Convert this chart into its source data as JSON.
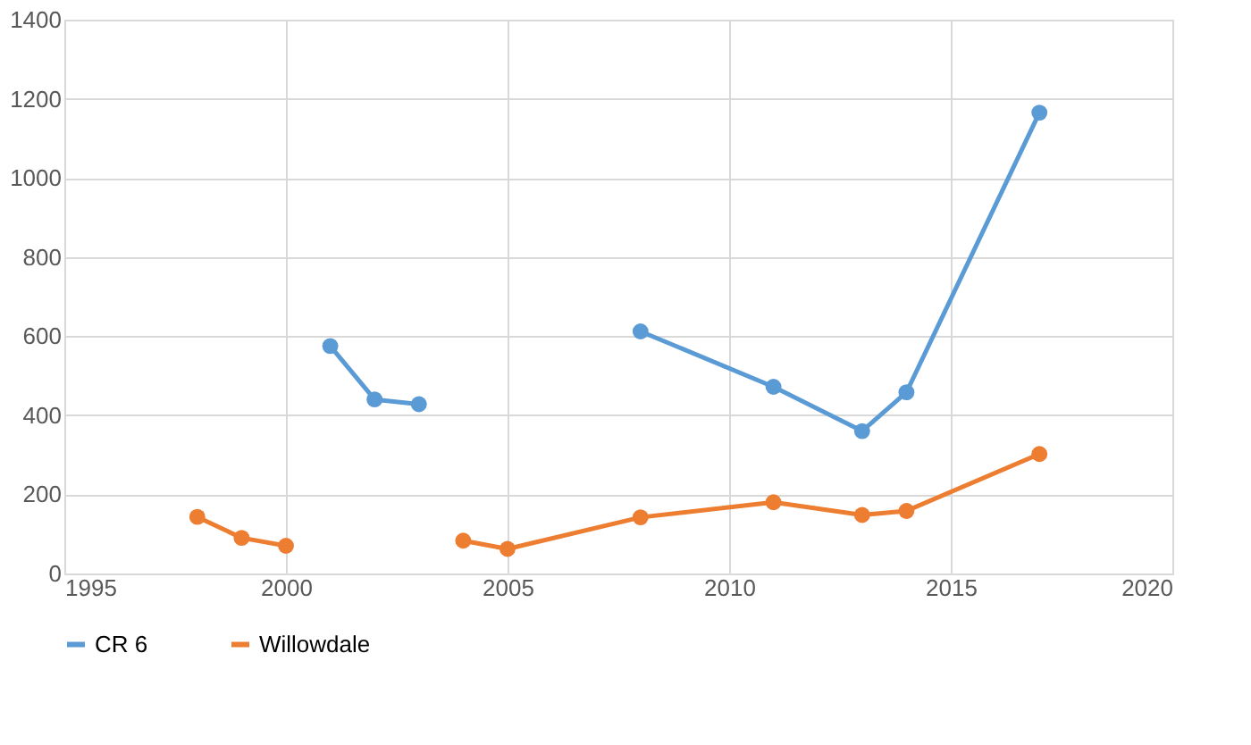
{
  "chart_data": {
    "type": "line",
    "x": [
      1998,
      1999,
      2000,
      2001,
      2002,
      2003,
      2004,
      2005,
      2008,
      2011,
      2013,
      2014,
      2017
    ],
    "series": [
      {
        "name": "CR 6",
        "color": "#5b9bd5",
        "values": [
          null,
          null,
          null,
          575,
          440,
          428,
          null,
          null,
          612,
          472,
          360,
          458,
          1165
        ]
      },
      {
        "name": "Willowdale",
        "color": "#ed7d31",
        "values": [
          143,
          90,
          70,
          null,
          null,
          null,
          83,
          62,
          142,
          180,
          148,
          158,
          302
        ]
      }
    ],
    "xlim": [
      1995,
      2020
    ],
    "xticks": [
      1995,
      2000,
      2005,
      2010,
      2015,
      2020
    ],
    "ylim": [
      0,
      1400
    ],
    "yticks": [
      0,
      200,
      400,
      600,
      800,
      1000,
      1200,
      1400
    ],
    "grid": true,
    "legend": "bottom",
    "marker": "circle",
    "line_style": "solid"
  }
}
